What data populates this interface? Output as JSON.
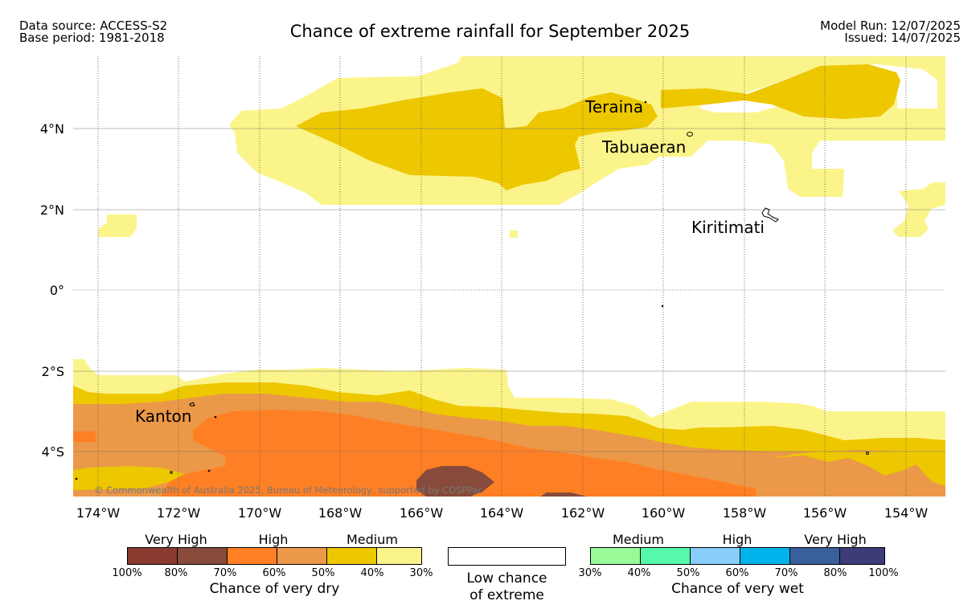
{
  "header": {
    "data_source": "Data source: ACCESS-S2",
    "base_period": "Base period: 1981-2018",
    "model_run": "Model Run: 12/07/2025",
    "issued": "Issued: 14/07/2025",
    "title": "Chance of extreme rainfall for September 2025"
  },
  "map": {
    "lat_labels": [
      "4°N",
      "2°N",
      "0°",
      "2°S",
      "4°S"
    ],
    "lon_labels": [
      "174°W",
      "172°W",
      "170°W",
      "168°W",
      "166°W",
      "164°W",
      "162°W",
      "160°W",
      "158°W",
      "156°W",
      "154°W"
    ],
    "places": [
      "Teraina",
      "Tabuaeran",
      "Kiritimati",
      "Kanton"
    ],
    "copyright": "© Commonwealth of Australia 2025, Bureau of Meteorology, supported by COSPPac",
    "colors": {
      "dry_100_80": "#8B3A2F",
      "dry_80_70": "#884A3A",
      "dry_70_60": "#FF7F24",
      "dry_60_50": "#EB9848",
      "dry_50_40": "#EDC700",
      "dry_40_30": "#FBF48A",
      "wet_30_40": "#98FB98",
      "wet_40_50": "#56F9A9",
      "wet_50_60": "#87CEFA",
      "wet_60_70": "#00B4EB",
      "wet_70_80": "#3A5F9D",
      "wet_80_100": "#3D3B78"
    }
  },
  "legend": {
    "dry": {
      "categories": [
        "Very High",
        "High",
        "Medium"
      ],
      "ticks": [
        "100%",
        "80%",
        "70%",
        "60%",
        "50%",
        "40%",
        "30%"
      ],
      "title": "Chance of very dry"
    },
    "low": {
      "line1": "Low chance",
      "line2": "of extreme"
    },
    "wet": {
      "categories": [
        "Medium",
        "High",
        "Very High"
      ],
      "ticks": [
        "30%",
        "40%",
        "50%",
        "60%",
        "70%",
        "80%",
        "100%"
      ],
      "title": "Chance of very wet"
    }
  }
}
